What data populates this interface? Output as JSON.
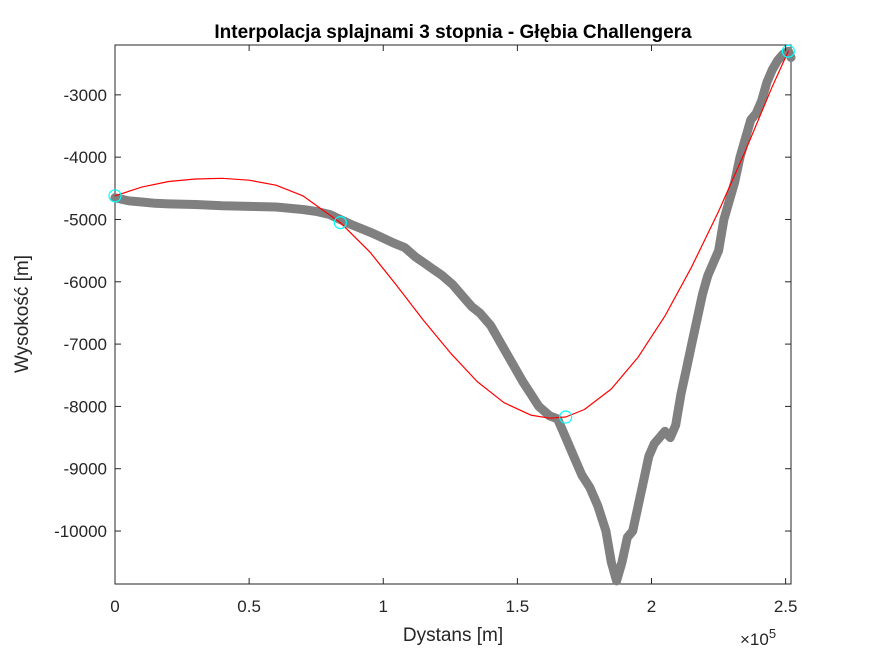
{
  "chart_data": {
    "type": "line",
    "title": "Interpolacja splajnami 3 stopnia - Głębia Challengera",
    "xlabel": "Dystans [m]",
    "ylabel": "Wysokość [m]",
    "x_exponent_label": "×10",
    "x_exponent_power": "5",
    "xlim": [
      0,
      252000
    ],
    "ylim": [
      -10850,
      -2200
    ],
    "x_ticks": [
      0,
      50000,
      100000,
      150000,
      200000,
      250000
    ],
    "x_tick_labels": [
      "0",
      "0.5",
      "1",
      "1.5",
      "2",
      "2.5"
    ],
    "y_ticks": [
      -10000,
      -9000,
      -8000,
      -7000,
      -6000,
      -5000,
      -4000,
      -3000
    ],
    "y_tick_labels": [
      "-10000",
      "-9000",
      "-8000",
      "-7000",
      "-6000",
      "-5000",
      "-4000",
      "-3000"
    ],
    "grid": false,
    "series": [
      {
        "role": "profile",
        "color": "#808080",
        "x": [
          0,
          5000,
          10000,
          15000,
          20000,
          30000,
          40000,
          50000,
          60000,
          70000,
          75000,
          80000,
          84000,
          88000,
          92000,
          96000,
          100000,
          104000,
          108000,
          112000,
          116000,
          118000,
          122000,
          126000,
          130000,
          133000,
          136000,
          140000,
          144000,
          148000,
          152000,
          155000,
          158000,
          162000,
          165000,
          168000,
          171000,
          174000,
          177000,
          180000,
          183000,
          185000,
          187000,
          189000,
          191000,
          193000,
          195000,
          197000,
          199000,
          201000,
          203000,
          205000,
          207000,
          209000,
          211000,
          213000,
          215000,
          217000,
          219000,
          221000,
          223000,
          225000,
          227000,
          229000,
          231000,
          233000,
          235000,
          237000,
          239000,
          241000,
          243000,
          245000,
          247000,
          249000,
          251000,
          252000
        ],
        "y": [
          -4650,
          -4700,
          -4720,
          -4740,
          -4750,
          -4760,
          -4780,
          -4790,
          -4800,
          -4840,
          -4870,
          -4920,
          -5000,
          -5080,
          -5150,
          -5220,
          -5300,
          -5380,
          -5450,
          -5600,
          -5720,
          -5780,
          -5900,
          -6050,
          -6250,
          -6400,
          -6500,
          -6700,
          -7000,
          -7300,
          -7600,
          -7800,
          -8000,
          -8150,
          -8200,
          -8500,
          -8800,
          -9100,
          -9300,
          -9600,
          -10000,
          -10500,
          -10800,
          -10500,
          -10100,
          -10000,
          -9600,
          -9200,
          -8800,
          -8600,
          -8500,
          -8400,
          -8500,
          -8300,
          -7800,
          -7400,
          -7000,
          -6600,
          -6200,
          -5900,
          -5700,
          -5500,
          -5000,
          -4700,
          -4400,
          -4000,
          -3700,
          -3400,
          -3300,
          -3100,
          -2800,
          -2600,
          -2450,
          -2350,
          -2300,
          -2400
        ]
      },
      {
        "role": "spline",
        "color": "#ff0000",
        "x": [
          0,
          10000,
          20000,
          30000,
          40000,
          50000,
          60000,
          70000,
          84000,
          95000,
          105000,
          115000,
          125000,
          135000,
          145000,
          155000,
          162000,
          168000,
          175000,
          185000,
          195000,
          205000,
          215000,
          225000,
          235000,
          245000,
          251000
        ],
        "y": [
          -4620,
          -4480,
          -4390,
          -4350,
          -4340,
          -4370,
          -4450,
          -4620,
          -5050,
          -5520,
          -6060,
          -6620,
          -7140,
          -7600,
          -7940,
          -8140,
          -8190,
          -8170,
          -8050,
          -7720,
          -7210,
          -6550,
          -5760,
          -4870,
          -3900,
          -2870,
          -2300
        ]
      },
      {
        "role": "nodes",
        "color": "#00ffff",
        "x": [
          0,
          84000,
          168000,
          251000
        ],
        "y": [
          -4620,
          -5050,
          -8170,
          -2300
        ]
      }
    ]
  }
}
